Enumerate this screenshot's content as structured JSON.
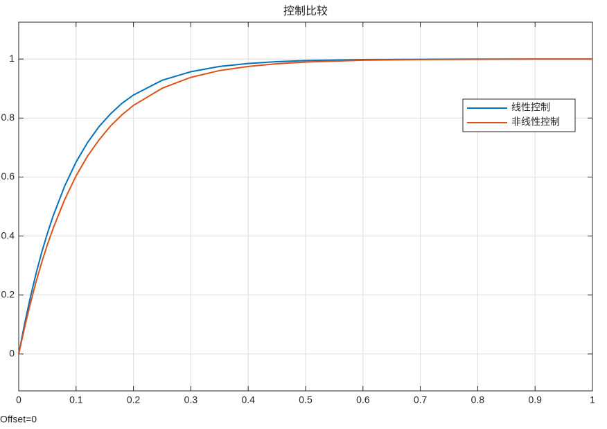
{
  "chart_data": {
    "type": "line",
    "title": "控制比较",
    "annotation": "Offset=0",
    "x": [
      0,
      0.01,
      0.02,
      0.03,
      0.04,
      0.05,
      0.06,
      0.08,
      0.1,
      0.12,
      0.14,
      0.16,
      0.18,
      0.2,
      0.25,
      0.3,
      0.35,
      0.4,
      0.45,
      0.5,
      0.6,
      0.7,
      0.8,
      0.9,
      1
    ],
    "series": [
      {
        "name": "线性控制",
        "color": "#0072bd",
        "values": [
          0,
          0.1,
          0.19,
          0.271,
          0.344,
          0.409,
          0.468,
          0.569,
          0.651,
          0.717,
          0.771,
          0.814,
          0.85,
          0.878,
          0.928,
          0.957,
          0.975,
          0.985,
          0.991,
          0.995,
          0.998,
          0.999,
          1,
          1,
          1
        ]
      },
      {
        "name": "非线性控制",
        "color": "#d95319",
        "values": [
          0,
          0.088,
          0.169,
          0.243,
          0.31,
          0.371,
          0.426,
          0.523,
          0.604,
          0.671,
          0.726,
          0.773,
          0.811,
          0.843,
          0.901,
          0.938,
          0.961,
          0.975,
          0.984,
          0.99,
          0.996,
          0.998,
          0.999,
          1,
          1
        ]
      }
    ],
    "xlim": [
      0,
      1
    ],
    "xticks": [
      0,
      0.1,
      0.2,
      0.3,
      0.4,
      0.5,
      0.6,
      0.7,
      0.8,
      0.9,
      1
    ],
    "ylim": [
      -0.125,
      1.125
    ],
    "yticks": [
      0,
      0.2,
      0.4,
      0.6,
      0.8,
      1
    ],
    "grid": true,
    "legend_position": "east"
  }
}
